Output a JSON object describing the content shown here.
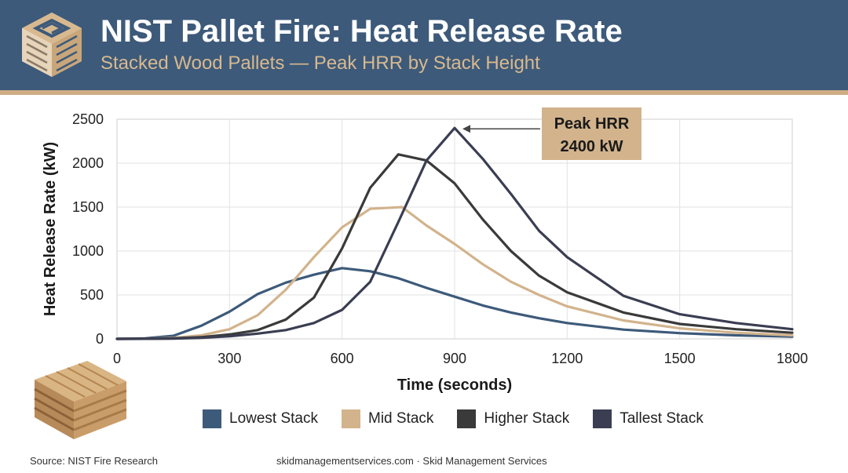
{
  "header": {
    "title": "NIST Pallet Fire: Heat Release Rate",
    "subtitle": "Stacked Wood Pallets — Peak HRR by Stack Height"
  },
  "chart_data": {
    "type": "line",
    "xlabel": "Time (seconds)",
    "ylabel": "Heat Release Rate (kW)",
    "xlim": [
      0,
      1800
    ],
    "ylim": [
      0,
      2500
    ],
    "xticks": [
      0,
      300,
      600,
      900,
      1200,
      1500,
      1800
    ],
    "yticks": [
      0,
      500,
      1000,
      1500,
      2000,
      2500
    ],
    "grid": true,
    "legend_position": "bottom",
    "series": [
      {
        "name": "Lowest Stack",
        "color": "#3d5a7a",
        "points": [
          [
            0,
            0
          ],
          [
            75,
            5
          ],
          [
            150,
            35
          ],
          [
            225,
            150
          ],
          [
            300,
            310
          ],
          [
            375,
            510
          ],
          [
            450,
            640
          ],
          [
            525,
            730
          ],
          [
            600,
            805
          ],
          [
            675,
            770
          ],
          [
            750,
            690
          ],
          [
            825,
            580
          ],
          [
            900,
            480
          ],
          [
            975,
            380
          ],
          [
            1050,
            300
          ],
          [
            1125,
            235
          ],
          [
            1200,
            180
          ],
          [
            1350,
            105
          ],
          [
            1500,
            65
          ],
          [
            1650,
            40
          ],
          [
            1800,
            25
          ]
        ]
      },
      {
        "name": "Mid Stack",
        "color": "#d2b38c",
        "points": [
          [
            0,
            0
          ],
          [
            75,
            2
          ],
          [
            150,
            10
          ],
          [
            225,
            40
          ],
          [
            300,
            110
          ],
          [
            375,
            270
          ],
          [
            450,
            560
          ],
          [
            525,
            930
          ],
          [
            600,
            1270
          ],
          [
            675,
            1480
          ],
          [
            760,
            1500
          ],
          [
            825,
            1290
          ],
          [
            900,
            1080
          ],
          [
            975,
            850
          ],
          [
            1050,
            650
          ],
          [
            1125,
            500
          ],
          [
            1200,
            370
          ],
          [
            1350,
            210
          ],
          [
            1500,
            120
          ],
          [
            1650,
            70
          ],
          [
            1800,
            40
          ]
        ]
      },
      {
        "name": "Higher Stack",
        "color": "#3a3a3a",
        "points": [
          [
            0,
            0
          ],
          [
            75,
            1
          ],
          [
            150,
            5
          ],
          [
            225,
            20
          ],
          [
            300,
            50
          ],
          [
            375,
            100
          ],
          [
            450,
            220
          ],
          [
            525,
            470
          ],
          [
            600,
            1030
          ],
          [
            675,
            1720
          ],
          [
            750,
            2100
          ],
          [
            825,
            2030
          ],
          [
            900,
            1770
          ],
          [
            975,
            1360
          ],
          [
            1050,
            1000
          ],
          [
            1125,
            720
          ],
          [
            1200,
            530
          ],
          [
            1350,
            300
          ],
          [
            1500,
            170
          ],
          [
            1650,
            110
          ],
          [
            1800,
            70
          ]
        ]
      },
      {
        "name": "Tallest Stack",
        "color": "#3b3e52",
        "points": [
          [
            0,
            0
          ],
          [
            75,
            1
          ],
          [
            150,
            3
          ],
          [
            225,
            12
          ],
          [
            300,
            30
          ],
          [
            375,
            60
          ],
          [
            450,
            100
          ],
          [
            525,
            180
          ],
          [
            600,
            330
          ],
          [
            675,
            650
          ],
          [
            750,
            1330
          ],
          [
            825,
            2030
          ],
          [
            900,
            2400
          ],
          [
            975,
            2050
          ],
          [
            1050,
            1650
          ],
          [
            1125,
            1230
          ],
          [
            1200,
            930
          ],
          [
            1350,
            490
          ],
          [
            1500,
            280
          ],
          [
            1650,
            180
          ],
          [
            1800,
            110
          ]
        ]
      }
    ],
    "annotations": [
      {
        "lines": [
          "Peak HRR",
          "2400 kW"
        ],
        "x": 900,
        "y": 2400
      }
    ]
  },
  "footer": {
    "source": "Source: NIST Fire Research",
    "site": "skidmanagementservices.com · Skid Management Services"
  }
}
